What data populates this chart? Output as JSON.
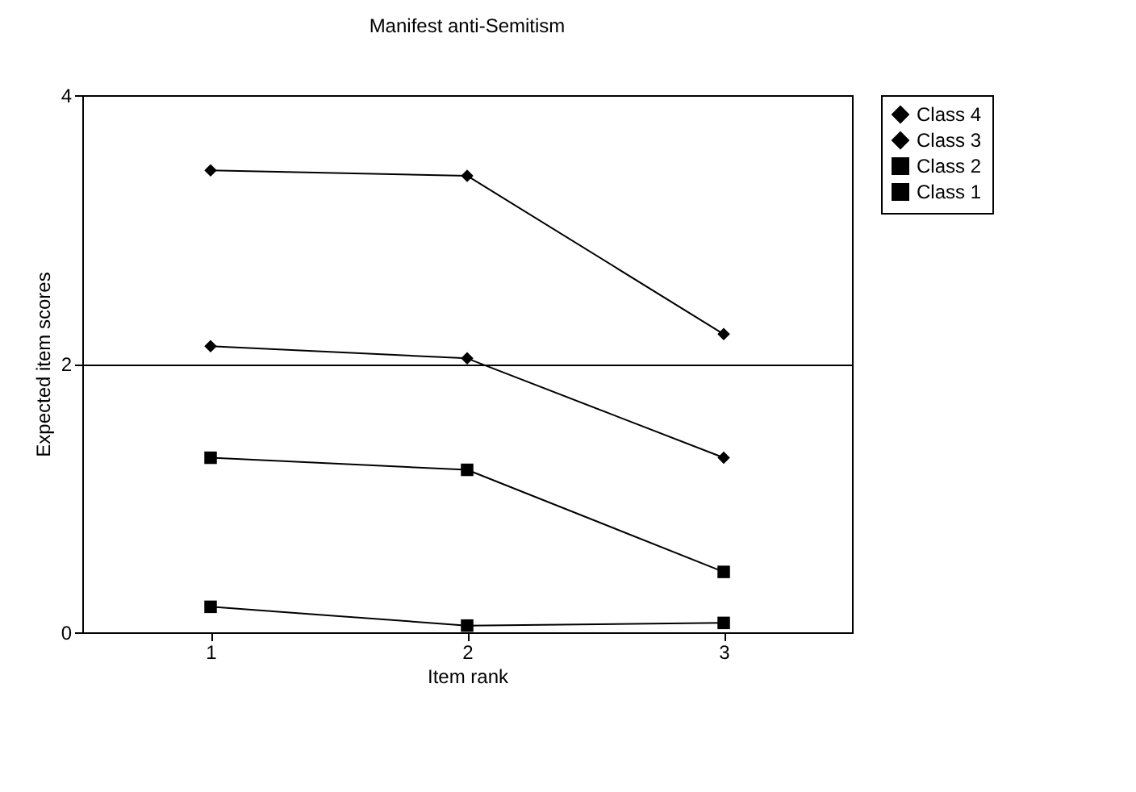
{
  "chart_data": {
    "type": "line",
    "title": "Manifest anti-Semitism",
    "xlabel": "Item rank",
    "ylabel": "Expected item scores",
    "categories": [
      "1",
      "2",
      "3"
    ],
    "series": [
      {
        "name": "Class 4",
        "color": "#000000",
        "marker": "diamond",
        "values": [
          3.44,
          3.4,
          2.22
        ]
      },
      {
        "name": "Class 3",
        "color": "#000000",
        "marker": "diamond",
        "values": [
          2.13,
          2.04,
          1.3
        ]
      },
      {
        "name": "Class 2",
        "color": "#000000",
        "marker": "square",
        "values": [
          1.3,
          1.21,
          0.45
        ]
      },
      {
        "name": "Class 1",
        "color": "#000000",
        "marker": "square",
        "values": [
          0.19,
          0.05,
          0.07
        ]
      }
    ],
    "ylim": [
      0,
      4
    ],
    "yticks": [
      0,
      2,
      4
    ],
    "grid": "y",
    "legend": "right",
    "line_style": "solid"
  }
}
